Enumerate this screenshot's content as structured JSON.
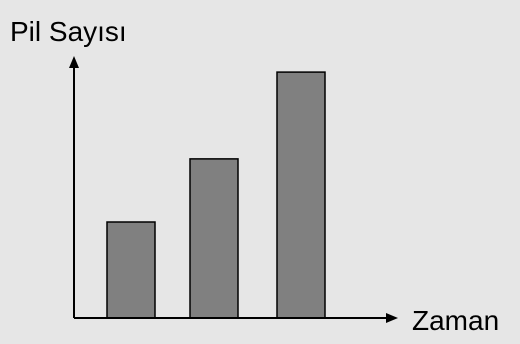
{
  "chart_data": {
    "type": "bar",
    "title": "",
    "ylabel": "Pil Sayısı",
    "xlabel": "Zaman",
    "categories": [
      "",
      "",
      ""
    ],
    "values": [
      36.5,
      60.5,
      93.5
    ],
    "ylim": [
      0,
      100
    ],
    "grid": false,
    "legend": "none",
    "colors": {
      "bar_fill": "#808080",
      "bar_stroke": "#000000",
      "axis": "#000000",
      "background": "#e6e6e6"
    }
  }
}
